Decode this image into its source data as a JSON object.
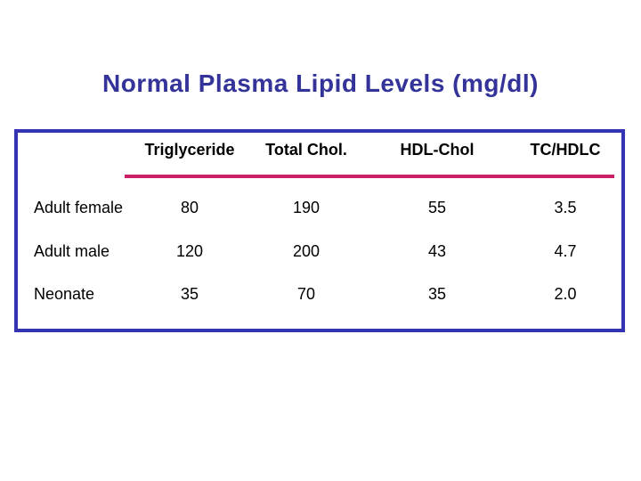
{
  "slide": {
    "title": "Normal Plasma Lipid Levels (mg/dl)",
    "colors": {
      "title_text": "#333399",
      "box_border": "#3333B3",
      "header_rule": "#CC2066",
      "body_text": "#000000",
      "background": "#FFFFFF"
    }
  },
  "table": {
    "columns": [
      "Triglyceride",
      "Total Chol.",
      "HDL-Chol",
      "TC/HDLC"
    ],
    "rows": [
      {
        "label": "Adult female",
        "values": [
          "80",
          "190",
          "55",
          "3.5"
        ]
      },
      {
        "label": "Adult male",
        "values": [
          "120",
          "200",
          "43",
          "4.7"
        ]
      },
      {
        "label": "Neonate",
        "values": [
          "35",
          "70",
          "35",
          "2.0"
        ]
      }
    ]
  },
  "chart_data": {
    "type": "table",
    "title": "Normal Plasma Lipid Levels (mg/dl)",
    "columns": [
      "",
      "Triglyceride",
      "Total Chol.",
      "HDL-Chol",
      "TC/HDLC"
    ],
    "rows": [
      [
        "Adult female",
        80,
        190,
        55,
        3.5
      ],
      [
        "Adult male",
        120,
        200,
        43,
        4.7
      ],
      [
        "Neonate",
        35,
        70,
        35,
        2.0
      ]
    ]
  }
}
